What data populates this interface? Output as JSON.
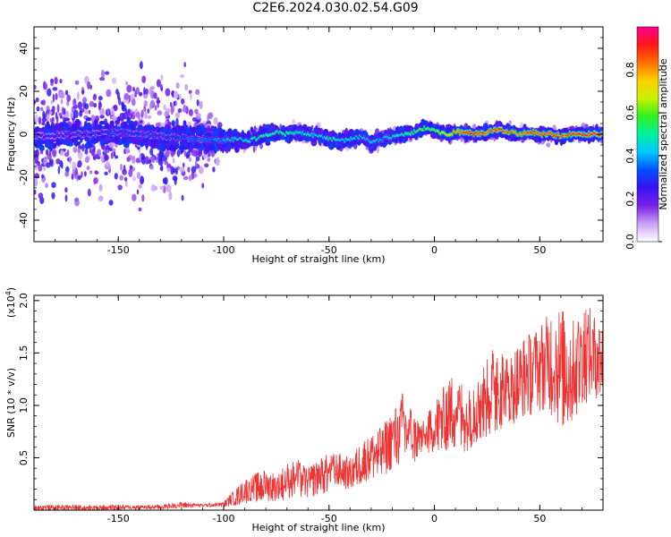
{
  "title": "C2E6.2024.030.02.54.G09",
  "chart_data": [
    {
      "type": "heatmap",
      "description_series": "spectrogram of frequency vs height",
      "xlabel": "Height of straight line (km)",
      "ylabel": "Frequency (Hz)",
      "xlim": [
        -190,
        80
      ],
      "ylim": [
        -50,
        50
      ],
      "xticks": [
        -150,
        -100,
        -50,
        0,
        50
      ],
      "yticks": [
        -40,
        -20,
        0,
        20,
        40
      ],
      "colorbar": {
        "label": "Normalized spectral amplitude",
        "range": [
          0.0,
          1.0
        ],
        "ticks": [
          "0.0",
          "0.2",
          "0.4",
          "0.6",
          "0.8"
        ],
        "colors": [
          "#ffffff",
          "#c9a0f5",
          "#7a22e8",
          "#3a10f0",
          "#0050ff",
          "#00c8ff",
          "#00f0a0",
          "#30f020",
          "#c8f000",
          "#ffd000",
          "#ff7000",
          "#ff1818",
          "#ff0090"
        ]
      },
      "ridge_x": [
        -190,
        -170,
        -150,
        -130,
        -115,
        -100,
        -95,
        -90,
        -85,
        -80,
        -75,
        -70,
        -65,
        -60,
        -55,
        -50,
        -45,
        -40,
        -35,
        -30,
        -25,
        -20,
        -15,
        -10,
        -5,
        0,
        5,
        10,
        15,
        20,
        25,
        30,
        35,
        40,
        45,
        50,
        55,
        60,
        65,
        70,
        75,
        80
      ],
      "ridge_y": [
        -1,
        0,
        1,
        -1,
        -2,
        -3,
        -2,
        -3,
        -2,
        0,
        1,
        0,
        1,
        0,
        -1,
        -2,
        -3,
        -2,
        -1,
        -4,
        -2,
        -1,
        0,
        1,
        3,
        2,
        0,
        1,
        1,
        0,
        1,
        2,
        1,
        0,
        1,
        0,
        0,
        -1,
        0,
        0,
        0,
        0
      ],
      "ridge_amp": [
        0.25,
        0.28,
        0.3,
        0.3,
        0.35,
        0.4,
        0.45,
        0.45,
        0.5,
        0.55,
        0.5,
        0.55,
        0.45,
        0.5,
        0.45,
        0.5,
        0.45,
        0.5,
        0.4,
        0.45,
        0.4,
        0.45,
        0.5,
        0.55,
        0.6,
        0.6,
        0.7,
        0.8,
        0.9,
        0.9,
        0.85,
        0.9,
        0.85,
        0.8,
        0.9,
        0.85,
        0.9,
        0.85,
        0.9,
        0.9,
        0.95,
        0.95
      ],
      "scatter_half_width_hz": [
        50,
        50,
        50,
        50,
        45,
        10,
        8,
        8,
        8,
        7,
        7,
        7,
        7,
        7,
        7,
        7,
        7,
        7,
        6,
        6,
        6,
        6,
        6,
        6,
        6,
        6,
        6,
        6,
        6,
        6,
        6,
        6,
        6,
        6,
        6,
        6,
        6,
        6,
        6,
        6,
        6,
        6
      ]
    },
    {
      "type": "line",
      "xlabel": "Height of straight line (km)",
      "ylabel": "SNR (10 * v/v)",
      "ylabel_scale": "(x10",
      "ylabel_exponent": "4",
      "ylabel_close": ")",
      "xlim": [
        -190,
        80
      ],
      "ylim": [
        0,
        2.05
      ],
      "xticks": [
        -150,
        -100,
        -50,
        0,
        50
      ],
      "yticks": [
        0.5,
        1.0,
        1.5,
        2.0
      ],
      "ytick_labels": [
        "0.5",
        "1.0",
        "1.5",
        "2.0"
      ],
      "color": "#ee3333",
      "envelope": {
        "x": [
          -190,
          -170,
          -150,
          -130,
          -120,
          -110,
          -100,
          -95,
          -90,
          -85,
          -80,
          -75,
          -70,
          -65,
          -60,
          -55,
          -50,
          -45,
          -40,
          -35,
          -30,
          -25,
          -20,
          -15,
          -10,
          -5,
          0,
          5,
          10,
          15,
          20,
          25,
          30,
          35,
          40,
          45,
          50,
          55,
          60,
          65,
          70,
          75,
          80
        ],
        "low": [
          0.0,
          0.0,
          0.0,
          0.01,
          0.02,
          0.03,
          0.03,
          0.04,
          0.06,
          0.08,
          0.08,
          0.09,
          0.1,
          0.12,
          0.12,
          0.15,
          0.16,
          0.2,
          0.2,
          0.25,
          0.3,
          0.3,
          0.4,
          0.45,
          0.45,
          0.5,
          0.55,
          0.55,
          0.6,
          0.55,
          0.65,
          0.7,
          0.75,
          0.8,
          0.85,
          0.9,
          0.95,
          0.9,
          0.8,
          0.8,
          1.0,
          1.05,
          1.1
        ],
        "high": [
          0.05,
          0.05,
          0.05,
          0.05,
          0.08,
          0.06,
          0.08,
          0.2,
          0.3,
          0.35,
          0.4,
          0.35,
          0.45,
          0.5,
          0.4,
          0.5,
          0.55,
          0.55,
          0.5,
          0.65,
          0.75,
          0.8,
          0.95,
          1.15,
          0.95,
          0.85,
          1.05,
          1.2,
          1.35,
          1.15,
          1.3,
          1.45,
          1.65,
          1.45,
          1.6,
          1.7,
          1.8,
          1.9,
          1.95,
          1.8,
          2.05,
          1.9,
          1.85
        ]
      }
    }
  ]
}
